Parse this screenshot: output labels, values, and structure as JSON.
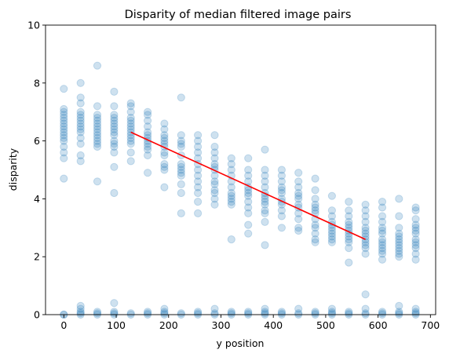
{
  "chart_data": {
    "type": "scatter",
    "title": "Disparity of median filtered image pairs",
    "xlabel": "y position",
    "ylabel": "disparity",
    "xlim": [
      -35,
      710
    ],
    "ylim": [
      0,
      10
    ],
    "xticks": [
      0,
      100,
      200,
      300,
      400,
      500,
      600,
      700
    ],
    "yticks": [
      0,
      2,
      4,
      6,
      8,
      10
    ],
    "grid": false,
    "colors": {
      "points": "#1f77b4",
      "fit_line": "#ff0000",
      "axes": "#000000"
    },
    "point_alpha": 0.22,
    "series": [
      {
        "type": "scatter",
        "columns": [
          {
            "x": 0,
            "y": [
              4.7,
              5.4,
              5.6,
              5.8,
              6.0,
              6.1,
              6.2,
              6.3,
              6.4,
              6.5,
              6.6,
              6.7,
              6.8,
              6.9,
              7.0,
              7.1,
              7.8
            ],
            "zeros": [
              0.0,
              0.0
            ]
          },
          {
            "x": 32,
            "y": [
              5.3,
              5.5,
              5.9,
              6.1,
              6.3,
              6.4,
              6.5,
              6.6,
              6.7,
              6.8,
              6.9,
              7.0,
              7.3,
              7.5,
              8.0
            ],
            "zeros": [
              0.0,
              0.05,
              0.1,
              0.2,
              0.3
            ]
          },
          {
            "x": 64,
            "y": [
              4.6,
              5.8,
              5.9,
              6.0,
              6.1,
              6.2,
              6.3,
              6.4,
              6.5,
              6.6,
              6.7,
              6.8,
              6.9,
              7.2,
              8.6
            ],
            "zeros": [
              0.0,
              0.05,
              0.1
            ]
          },
          {
            "x": 96,
            "y": [
              4.2,
              5.1,
              5.6,
              5.8,
              5.9,
              6.0,
              6.2,
              6.3,
              6.4,
              6.5,
              6.6,
              6.7,
              6.8,
              6.9,
              7.2,
              7.7
            ],
            "zeros": [
              0.0,
              0.05,
              0.1,
              0.4
            ]
          },
          {
            "x": 128,
            "y": [
              5.3,
              5.6,
              5.9,
              6.0,
              6.1,
              6.2,
              6.3,
              6.4,
              6.5,
              6.6,
              6.7,
              6.8,
              7.0,
              7.2,
              7.3
            ],
            "zeros": [
              0.0,
              0.05
            ]
          },
          {
            "x": 160,
            "y": [
              4.9,
              5.5,
              5.7,
              5.8,
              5.9,
              6.0,
              6.1,
              6.2,
              6.3,
              6.5,
              6.7,
              6.9,
              7.0
            ],
            "zeros": [
              0.0,
              0.05,
              0.1
            ]
          },
          {
            "x": 192,
            "y": [
              4.4,
              5.0,
              5.1,
              5.2,
              5.5,
              5.6,
              5.8,
              5.9,
              6.0,
              6.1,
              6.2,
              6.4,
              6.6
            ],
            "zeros": [
              0.0,
              0.05,
              0.1,
              0.2
            ]
          },
          {
            "x": 224,
            "y": [
              3.5,
              4.2,
              4.5,
              4.8,
              4.9,
              5.0,
              5.1,
              5.2,
              5.5,
              5.8,
              5.9,
              6.0,
              6.2,
              7.5
            ],
            "zeros": [
              0.0,
              0.05
            ]
          },
          {
            "x": 256,
            "y": [
              3.5,
              3.9,
              4.2,
              4.4,
              4.6,
              4.8,
              5.0,
              5.2,
              5.4,
              5.6,
              5.8,
              6.0,
              6.2
            ],
            "zeros": [
              0.0,
              0.05,
              0.1
            ]
          },
          {
            "x": 288,
            "y": [
              3.8,
              4.0,
              4.2,
              4.3,
              4.5,
              4.6,
              4.8,
              5.0,
              5.1,
              5.2,
              5.4,
              5.6,
              5.8,
              6.2
            ],
            "zeros": [
              0.0,
              0.05,
              0.2
            ]
          },
          {
            "x": 320,
            "y": [
              2.6,
              3.8,
              3.9,
              4.0,
              4.1,
              4.2,
              4.4,
              4.6,
              4.8,
              5.0,
              5.2,
              5.4
            ],
            "zeros": [
              0.0,
              0.05,
              0.1
            ]
          },
          {
            "x": 352,
            "y": [
              2.8,
              3.1,
              3.5,
              3.7,
              3.9,
              4.1,
              4.2,
              4.3,
              4.4,
              4.6,
              4.8,
              5.0,
              5.4
            ],
            "zeros": [
              0.0,
              0.05,
              0.1
            ]
          },
          {
            "x": 384,
            "y": [
              2.4,
              3.2,
              3.5,
              3.6,
              3.8,
              3.9,
              4.0,
              4.1,
              4.2,
              4.4,
              4.6,
              4.8,
              5.0,
              5.7
            ],
            "zeros": [
              0.0,
              0.05,
              0.1,
              0.2
            ]
          },
          {
            "x": 416,
            "y": [
              3.0,
              3.4,
              3.6,
              3.8,
              3.9,
              4.0,
              4.2,
              4.3,
              4.4,
              4.6,
              4.8,
              5.0
            ],
            "zeros": [
              0.0,
              0.05,
              0.1
            ]
          },
          {
            "x": 448,
            "y": [
              2.9,
              3.0,
              3.3,
              3.5,
              3.7,
              3.8,
              4.0,
              4.1,
              4.2,
              4.4,
              4.6,
              4.9
            ],
            "zeros": [
              0.0,
              0.05,
              0.2
            ]
          },
          {
            "x": 480,
            "y": [
              2.5,
              2.6,
              2.8,
              3.0,
              3.1,
              3.3,
              3.5,
              3.6,
              3.7,
              3.8,
              4.0,
              4.3,
              4.7
            ],
            "zeros": [
              0.0,
              0.05,
              0.1
            ]
          },
          {
            "x": 512,
            "y": [
              2.5,
              2.6,
              2.7,
              2.8,
              2.9,
              3.0,
              3.1,
              3.2,
              3.4,
              3.6,
              4.1
            ],
            "zeros": [
              0.0,
              0.05,
              0.1,
              0.2
            ]
          },
          {
            "x": 544,
            "y": [
              1.8,
              2.3,
              2.5,
              2.6,
              2.7,
              2.8,
              2.9,
              3.0,
              3.1,
              3.2,
              3.4,
              3.6,
              3.9
            ],
            "zeros": [
              0.0,
              0.05,
              0.1
            ]
          },
          {
            "x": 576,
            "y": [
              0.7,
              2.1,
              2.3,
              2.4,
              2.5,
              2.6,
              2.7,
              2.8,
              2.9,
              3.0,
              3.2,
              3.4,
              3.6,
              3.8
            ],
            "zeros": [
              0.0,
              0.05,
              0.2
            ]
          },
          {
            "x": 608,
            "y": [
              1.9,
              2.1,
              2.2,
              2.3,
              2.4,
              2.5,
              2.6,
              2.8,
              2.9,
              3.0,
              3.2,
              3.4,
              3.7,
              3.9
            ],
            "zeros": [
              0.0,
              0.05,
              0.1
            ]
          },
          {
            "x": 640,
            "y": [
              2.0,
              2.1,
              2.2,
              2.3,
              2.4,
              2.5,
              2.6,
              2.7,
              2.8,
              3.0,
              3.4,
              4.0
            ],
            "zeros": [
              0.0,
              0.05,
              0.1,
              0.3
            ]
          },
          {
            "x": 672,
            "y": [
              1.9,
              2.1,
              2.3,
              2.4,
              2.5,
              2.6,
              2.8,
              2.9,
              3.0,
              3.1,
              3.3,
              3.6,
              3.7
            ],
            "zeros": [
              0.0,
              0.05,
              0.1,
              0.2
            ]
          }
        ]
      },
      {
        "type": "line",
        "x": [
          128,
          576
        ],
        "y": [
          6.3,
          2.6
        ]
      }
    ]
  }
}
